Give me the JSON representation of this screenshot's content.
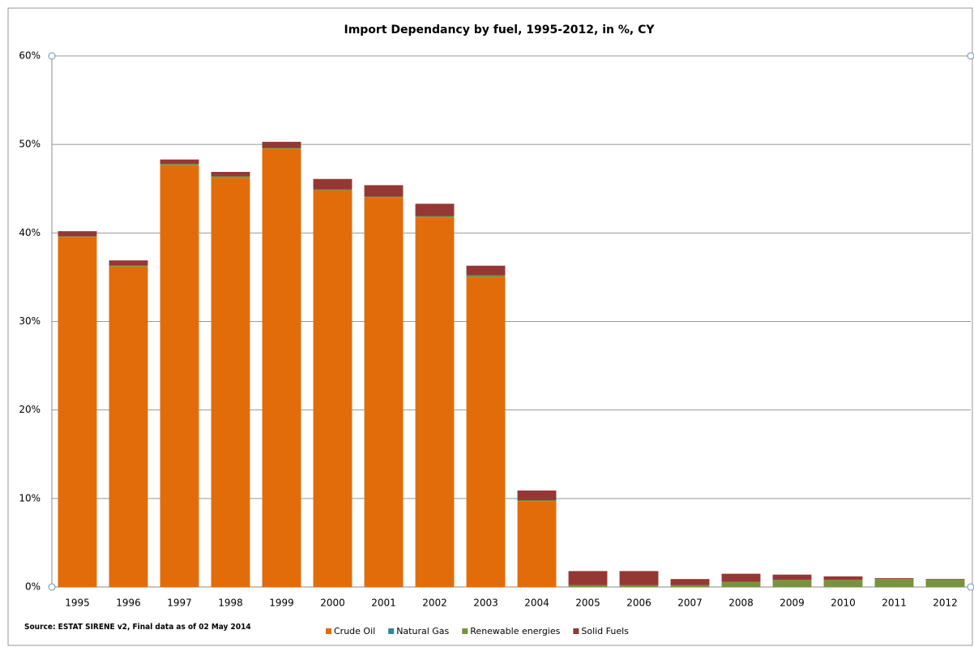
{
  "chart_data": {
    "type": "stacked_bar",
    "title": "Import Dependancy by fuel, 1995-2012, in %, CY",
    "note": "Source: ESTAT SIRENE v2, Final data as of 02 May 2014",
    "categories": [
      "1995",
      "1996",
      "1997",
      "1998",
      "1999",
      "2000",
      "2001",
      "2002",
      "2003",
      "2004",
      "2005",
      "2006",
      "2007",
      "2008",
      "2009",
      "2010",
      "2011",
      "2012"
    ],
    "series": [
      {
        "name": "Crude Oil",
        "color": "#e36c0a",
        "values": [
          39.5,
          36.2,
          47.6,
          46.2,
          49.5,
          44.8,
          44.0,
          41.7,
          35.0,
          9.7,
          0,
          0,
          0,
          0,
          0,
          0,
          0,
          0
        ]
      },
      {
        "name": "Natural Gas",
        "color": "#31859c",
        "values": [
          0,
          0,
          0,
          0,
          0,
          0,
          0,
          0,
          0,
          0,
          0,
          0,
          0,
          0,
          0,
          0,
          0,
          0
        ]
      },
      {
        "name": "Renewable energies",
        "color": "#77933c",
        "values": [
          0.1,
          0.1,
          0.2,
          0.2,
          0.1,
          0.1,
          0.1,
          0.2,
          0.2,
          0.1,
          0.2,
          0.2,
          0.2,
          0.6,
          0.8,
          0.8,
          0.9,
          0.8
        ]
      },
      {
        "name": "Solid Fuels",
        "color": "#953735",
        "values": [
          0.6,
          0.6,
          0.5,
          0.5,
          0.7,
          1.2,
          1.3,
          1.4,
          1.1,
          1.1,
          1.6,
          1.6,
          0.7,
          0.9,
          0.6,
          0.4,
          0.1,
          0.1
        ]
      }
    ],
    "ylim": [
      0,
      60
    ],
    "yticks": [
      {
        "value": 0,
        "label": "0%"
      },
      {
        "value": 10,
        "label": "10%"
      },
      {
        "value": 20,
        "label": "20%"
      },
      {
        "value": 30,
        "label": "30%"
      },
      {
        "value": 40,
        "label": "40%"
      },
      {
        "value": 50,
        "label": "50%"
      },
      {
        "value": 60,
        "label": "60%"
      }
    ],
    "grid": true,
    "legend": "bottom"
  }
}
